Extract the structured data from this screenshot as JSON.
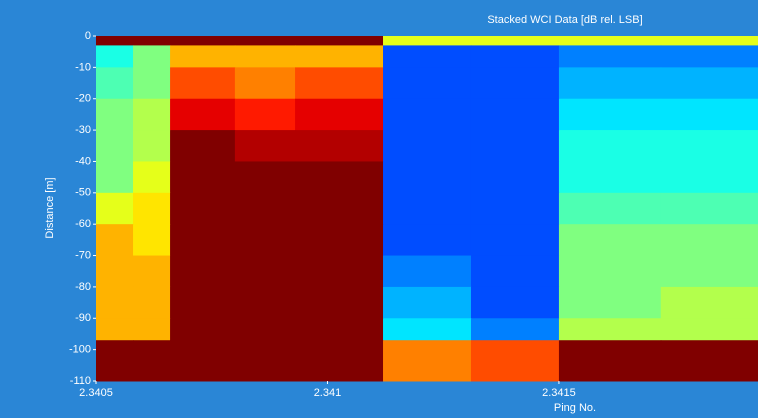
{
  "chart_data": {
    "type": "heatmap",
    "title": "Stacked WCI Data [dB rel. LSB]",
    "x_label": "Ping No.",
    "y_label": "Distance [m]",
    "colormap": "jet",
    "zlim": [
      0,
      10
    ],
    "xbins": [
      2.3405,
      2.34058,
      2.34066,
      2.3408,
      2.34093,
      2.34112,
      2.34131,
      2.3415,
      2.34172,
      2.34193
    ],
    "ybins": [
      0,
      -3,
      -10,
      -20,
      -30,
      -40,
      -50,
      -60,
      -70,
      -80,
      -90,
      -97,
      -110
    ],
    "z": [
      [
        10,
        10,
        10,
        10,
        10,
        6,
        6,
        6,
        6
      ],
      [
        4,
        5,
        7,
        7,
        7,
        2,
        2,
        2.5,
        2.5
      ],
      [
        4.5,
        5,
        8,
        7.5,
        8,
        2,
        2,
        3,
        3
      ],
      [
        5,
        5.5,
        9,
        8.5,
        9,
        2,
        2,
        3.5,
        3.5
      ],
      [
        5,
        5.5,
        10,
        9.5,
        9.5,
        2,
        2,
        4,
        4
      ],
      [
        5,
        6,
        10,
        10,
        10,
        2,
        2,
        4,
        4
      ],
      [
        6,
        6.5,
        10,
        10,
        10,
        2,
        2,
        4.5,
        4.5
      ],
      [
        7,
        6.5,
        10,
        10,
        10,
        2,
        2,
        5,
        5
      ],
      [
        7,
        7,
        10,
        10,
        10,
        2.5,
        2,
        5,
        5
      ],
      [
        7,
        7,
        10,
        10,
        10,
        3,
        2,
        5,
        5.5
      ],
      [
        7,
        7,
        10,
        10,
        10,
        3.5,
        2.5,
        5.5,
        5.5
      ],
      [
        10,
        10,
        10,
        10,
        10,
        7.5,
        8,
        10,
        10
      ]
    ],
    "xlim": [
      2.3405,
      2.34193
    ],
    "ylim": [
      -110,
      0
    ],
    "xticks": [
      2.3405,
      2.341,
      2.3415
    ],
    "yticks": [
      0,
      -10,
      -20,
      -30,
      -40,
      -50,
      -60,
      -70,
      -80,
      -90,
      -100,
      -110
    ]
  }
}
